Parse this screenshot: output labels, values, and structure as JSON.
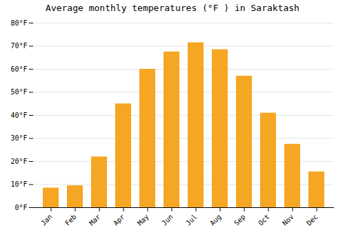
{
  "chart_data": {
    "type": "bar",
    "title": "Average monthly temperatures (°F ) in Saraktash",
    "categories": [
      "Jan",
      "Feb",
      "Mar",
      "Apr",
      "May",
      "Jun",
      "Jul",
      "Aug",
      "Sep",
      "Oct",
      "Nov",
      "Dec"
    ],
    "values": [
      8.5,
      9.5,
      22,
      45,
      60,
      67.5,
      71.5,
      68.5,
      57,
      41,
      27.5,
      15.5
    ],
    "color": "#F5A623",
    "ylim": [
      0,
      80
    ],
    "yticks": [
      {
        "value": 0,
        "label": "0°F"
      },
      {
        "value": 10,
        "label": "10°F"
      },
      {
        "value": 20,
        "label": "20°F"
      },
      {
        "value": 30,
        "label": "30°F"
      },
      {
        "value": 40,
        "label": "40°F"
      },
      {
        "value": 50,
        "label": "50°F"
      },
      {
        "value": 60,
        "label": "60°F"
      },
      {
        "value": 70,
        "label": "70°F"
      },
      {
        "value": 80,
        "label": "80°F"
      }
    ],
    "grid": true
  }
}
